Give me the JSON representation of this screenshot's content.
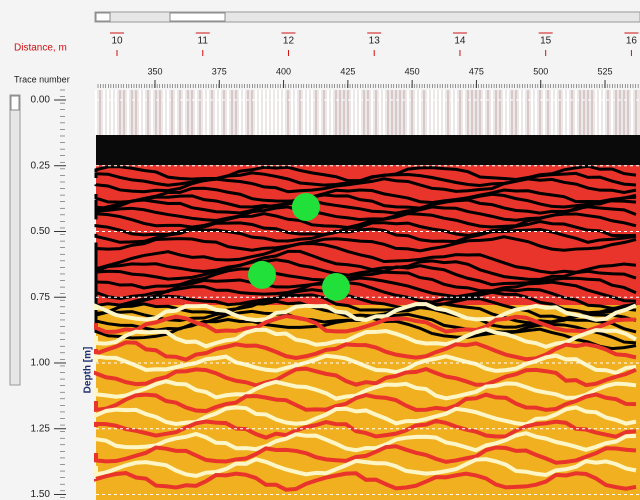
{
  "chart_data": {
    "type": "radargram",
    "distance_label": "Distance, m",
    "trace_label": "Trace number",
    "depth_label": "Depth [m]",
    "distance_lim": [
      9.755,
      16.1
    ],
    "distance_ticks": [
      10,
      11,
      12,
      13,
      14,
      15,
      16
    ],
    "xlim": [
      327.06,
      538.6
    ],
    "xticks": [
      350,
      375,
      400,
      425,
      450,
      475,
      500,
      525
    ],
    "ylim": [
      -0.038,
      1.521
    ],
    "yticks": [
      {
        "value": 0,
        "label": "0.00"
      },
      {
        "value": 0.25,
        "label": "0.25"
      },
      {
        "value": 0.5,
        "label": "0.50"
      },
      {
        "value": 0.75,
        "label": "0.75"
      },
      {
        "value": 1,
        "label": "1.00"
      },
      {
        "value": 1.25,
        "label": "1.25"
      },
      {
        "value": 1.5,
        "label": "1.50"
      }
    ],
    "grid": true,
    "points": {
      "color": "#22e03a",
      "x": [
        408.7,
        391.6,
        420.4
      ],
      "y": [
        0.407,
        0.665,
        0.711
      ]
    }
  }
}
